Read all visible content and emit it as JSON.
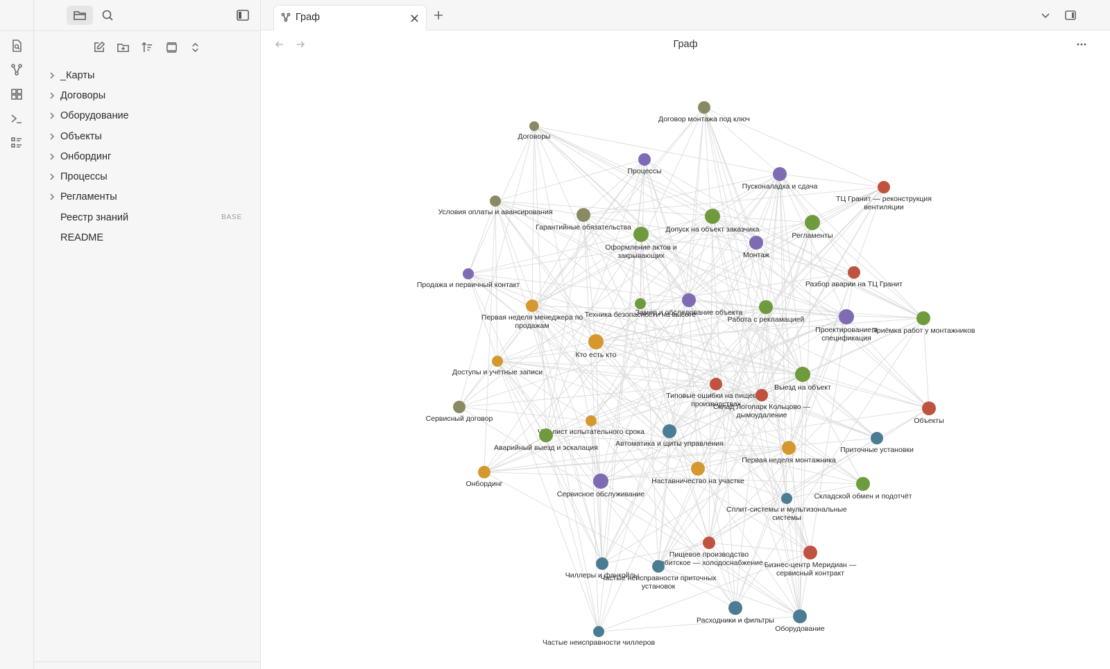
{
  "ribbon": {
    "icons": [
      "search-note-icon",
      "graph-icon",
      "canvas-icon",
      "terminal-icon",
      "outline-icon"
    ]
  },
  "sidebar": {
    "header_icons": [
      "folder-icon",
      "search-icon",
      "sidebar-toggle-icon"
    ],
    "toolbar_icons": [
      "new-note-icon",
      "new-folder-icon",
      "sort-icon",
      "collapse-icon",
      "expand-collapse-icon"
    ],
    "tree": [
      {
        "label": "_Карты",
        "folder": true
      },
      {
        "label": "Договоры",
        "folder": true
      },
      {
        "label": "Оборудование",
        "folder": true
      },
      {
        "label": "Объекты",
        "folder": true
      },
      {
        "label": "Онбординг",
        "folder": true
      },
      {
        "label": "Процессы",
        "folder": true
      },
      {
        "label": "Регламенты",
        "folder": true
      },
      {
        "label": "Реестр знаний",
        "folder": false,
        "badge": "BASE"
      },
      {
        "label": "README",
        "folder": false
      }
    ]
  },
  "tab": {
    "title": "Граф",
    "icon": "graph-icon"
  },
  "view": {
    "title": "Граф"
  },
  "colors": {
    "olive": "#8a8a62",
    "purple": "#7e6bb3",
    "red": "#c0533f",
    "green": "#6f9a3e",
    "orange": "#d4982f",
    "teal": "#4a7d93",
    "edge": "#d8d8d8"
  },
  "graph": {
    "nodes": [
      {
        "id": "dogovor-montazha",
        "label": "Договор монтажа под ключ",
        "color": "olive"
      },
      {
        "id": "dogovory",
        "label": "Договоры",
        "color": "olive"
      },
      {
        "id": "processy",
        "label": "Процессы",
        "color": "purple"
      },
      {
        "id": "puskonaladka",
        "label": "Пусконаладка и сдача",
        "color": "purple"
      },
      {
        "id": "tc-granit",
        "label": "ТЦ Гранит — реконструкция вентиляции",
        "color": "red"
      },
      {
        "id": "usloviya-oplaty",
        "label": "Условия оплаты и авансирования",
        "color": "olive"
      },
      {
        "id": "garantiynye",
        "label": "Гарантийные обязательства",
        "color": "olive"
      },
      {
        "id": "dopusk",
        "label": "Допуск на объект заказчика",
        "color": "green"
      },
      {
        "id": "reglamenty",
        "label": "Регламенты",
        "color": "green"
      },
      {
        "id": "oformlenie",
        "label": "Оформление актов и закрывающих",
        "color": "green"
      },
      {
        "id": "montazh",
        "label": "Монтаж",
        "color": "purple"
      },
      {
        "id": "prodazha",
        "label": "Продажа и первичный контакт",
        "color": "purple"
      },
      {
        "id": "razbor-avarii",
        "label": "Разбор аварии на ТЦ Гранит",
        "color": "red"
      },
      {
        "id": "pervaya-nedelya-menedzhera",
        "label": "Первая неделя менеджера по продажам",
        "color": "orange"
      },
      {
        "id": "tehnika-bezopasnosti",
        "label": "Техника безопасности на высоте",
        "color": "green"
      },
      {
        "id": "zamer",
        "label": "Замер и обследование объекта",
        "color": "purple"
      },
      {
        "id": "rabota-s-reklamaciey",
        "label": "Работа с рекламацией",
        "color": "green"
      },
      {
        "id": "proektirovanie",
        "label": "Проектирование и спецификация",
        "color": "purple"
      },
      {
        "id": "priemka",
        "label": "Приёмка работ у монтажников",
        "color": "green"
      },
      {
        "id": "kto-est-kto",
        "label": "Кто есть кто",
        "color": "orange"
      },
      {
        "id": "dostupy",
        "label": "Доступы и учётные записи",
        "color": "orange"
      },
      {
        "id": "viezd",
        "label": "Выезд на объект",
        "color": "green"
      },
      {
        "id": "tipovye-oshibki",
        "label": "Типовые ошибки на пищевых производствах",
        "color": "red"
      },
      {
        "id": "sklad-logopark",
        "label": "Склад Логопарк Кольцово — дымоудаление",
        "color": "red"
      },
      {
        "id": "servisnyy-dogovor",
        "label": "Сервисный договор",
        "color": "olive"
      },
      {
        "id": "obekty",
        "label": "Объекты",
        "color": "red"
      },
      {
        "id": "chek-list",
        "label": "Чек-лист испытательного срока",
        "color": "orange"
      },
      {
        "id": "avariynyy-viezd",
        "label": "Аварийный выезд и эскалация",
        "color": "green"
      },
      {
        "id": "avtomatika",
        "label": "Автоматика и щиты управления",
        "color": "teal"
      },
      {
        "id": "pritochnye",
        "label": "Приточные установки",
        "color": "teal"
      },
      {
        "id": "pervaya-nedelya-montazhnika",
        "label": "Первая неделя монтажника",
        "color": "orange"
      },
      {
        "id": "onbording",
        "label": "Онбординг",
        "color": "orange"
      },
      {
        "id": "nastavnichestvo",
        "label": "Наставничество на участке",
        "color": "orange"
      },
      {
        "id": "servisnoe-obsluzhivanie",
        "label": "Сервисное обслуживание",
        "color": "purple"
      },
      {
        "id": "skladskoy-obmen",
        "label": "Складской обмен и подотчёт",
        "color": "green"
      },
      {
        "id": "split-sistemy",
        "label": "Сплит-системы и мультизональные системы",
        "color": "teal"
      },
      {
        "id": "pischevoe-proizvodstvo",
        "label": "Пищевое производство Ирбитское — холодоснабжение",
        "color": "red"
      },
      {
        "id": "biznes-centr",
        "label": "Бизнес-центр Меридиан — сервисный контракт",
        "color": "red"
      },
      {
        "id": "chillery",
        "label": "Чиллеры и фанкойлы",
        "color": "teal"
      },
      {
        "id": "chastye-pritochnyh",
        "label": "Частые неисправности приточных установок",
        "color": "teal"
      },
      {
        "id": "rashodniki",
        "label": "Расходники и фильтры",
        "color": "teal"
      },
      {
        "id": "oborudovanie",
        "label": "Оборудование",
        "color": "teal"
      },
      {
        "id": "chastye-chillerov",
        "label": "Частые неисправности чиллеров",
        "color": "teal"
      }
    ]
  }
}
